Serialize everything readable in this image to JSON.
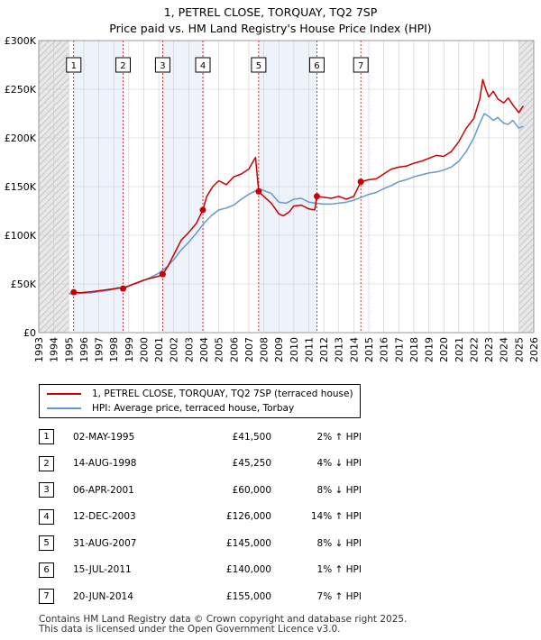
{
  "header": {
    "title_line1": "1, PETREL CLOSE, TORQUAY, TQ2 7SP",
    "title_line2": "Price paid vs. HM Land Registry's House Price Index (HPI)"
  },
  "colors": {
    "property": "#cc0000",
    "hpi": "#6699cc",
    "grid": "#cccccc",
    "shade": "#e8e8e8",
    "highlight": "#eef2fa"
  },
  "chart_data": {
    "type": "line",
    "title": "Price paid vs. HM Land Registry's House Price Index (HPI)",
    "xlim": [
      1993,
      2026
    ],
    "ylim": [
      0,
      300000
    ],
    "yticks": [
      0,
      50000,
      100000,
      150000,
      200000,
      250000,
      300000
    ],
    "ytick_labels": [
      "£0",
      "£50K",
      "£100K",
      "£150K",
      "£200K",
      "£250K",
      "£300K"
    ],
    "xticks": [
      1993,
      1994,
      1995,
      1996,
      1997,
      1998,
      1999,
      2000,
      2001,
      2002,
      2003,
      2004,
      2005,
      2006,
      2007,
      2008,
      2009,
      2010,
      2011,
      2012,
      2013,
      2014,
      2015,
      2016,
      2017,
      2018,
      2019,
      2020,
      2021,
      2022,
      2023,
      2024,
      2025,
      2026
    ],
    "hatched_before": 1995.0,
    "hatched_after": 2025.0,
    "series": [
      {
        "name": "1, PETREL CLOSE, TORQUAY, TQ2 7SP (terraced house)",
        "x": [
          1995.33,
          1995.8,
          1996.5,
          1997.0,
          1997.5,
          1998.0,
          1998.3,
          1998.62,
          1999.0,
          1999.5,
          2000.0,
          2000.5,
          2001.0,
          2001.26,
          2001.6,
          2002.0,
          2002.5,
          2003.0,
          2003.5,
          2003.94,
          2004.2,
          2004.6,
          2005.0,
          2005.5,
          2006.0,
          2006.5,
          2007.0,
          2007.3,
          2007.45,
          2007.66,
          2008.0,
          2008.5,
          2009.0,
          2009.3,
          2009.7,
          2010.0,
          2010.5,
          2011.0,
          2011.4,
          2011.54,
          2012.0,
          2012.5,
          2013.0,
          2013.5,
          2014.0,
          2014.47,
          2015.0,
          2015.5,
          2016.0,
          2016.5,
          2017.0,
          2017.5,
          2018.0,
          2018.5,
          2019.0,
          2019.5,
          2020.0,
          2020.5,
          2021.0,
          2021.5,
          2022.0,
          2022.4,
          2022.6,
          2022.8,
          2023.0,
          2023.3,
          2023.6,
          2024.0,
          2024.3,
          2024.6,
          2025.0,
          2025.3
        ],
        "values": [
          41500,
          41000,
          42000,
          43000,
          44000,
          45000,
          46000,
          45250,
          48000,
          51000,
          54000,
          56000,
          58000,
          60000,
          68000,
          80000,
          95000,
          103000,
          112000,
          126000,
          140000,
          150000,
          156000,
          152000,
          160000,
          163000,
          168000,
          176000,
          180000,
          145000,
          140000,
          133000,
          122000,
          120000,
          124000,
          130000,
          131000,
          127000,
          126000,
          140000,
          139000,
          138000,
          140000,
          137000,
          140000,
          155000,
          157000,
          158000,
          163000,
          168000,
          170000,
          171000,
          174000,
          176000,
          179000,
          182000,
          181000,
          186000,
          196000,
          210000,
          220000,
          240000,
          260000,
          250000,
          242000,
          248000,
          240000,
          236000,
          241000,
          234000,
          226000,
          233000
        ]
      },
      {
        "name": "HPI: Average price, terraced house, Torbay",
        "x": [
          1995.0,
          1995.5,
          1996.0,
          1996.5,
          1997.0,
          1997.5,
          1998.0,
          1998.5,
          1999.0,
          1999.5,
          2000.0,
          2000.5,
          2001.0,
          2001.5,
          2002.0,
          2002.5,
          2003.0,
          2003.5,
          2004.0,
          2004.5,
          2005.0,
          2005.5,
          2006.0,
          2006.5,
          2007.0,
          2007.5,
          2007.7,
          2008.0,
          2008.5,
          2009.0,
          2009.5,
          2010.0,
          2010.5,
          2011.0,
          2011.5,
          2012.0,
          2012.5,
          2013.0,
          2013.5,
          2014.0,
          2014.5,
          2015.0,
          2015.5,
          2016.0,
          2016.5,
          2017.0,
          2017.5,
          2018.0,
          2018.5,
          2019.0,
          2019.5,
          2020.0,
          2020.5,
          2021.0,
          2021.5,
          2022.0,
          2022.4,
          2022.7,
          2023.0,
          2023.3,
          2023.6,
          2024.0,
          2024.3,
          2024.6,
          2025.0,
          2025.3
        ],
        "values": [
          40000,
          40000,
          40500,
          41000,
          42000,
          43000,
          44500,
          46000,
          48000,
          50500,
          53500,
          57000,
          61000,
          67000,
          75000,
          85000,
          93000,
          102000,
          112000,
          120000,
          126000,
          128000,
          131000,
          137000,
          142000,
          146000,
          148000,
          146000,
          143000,
          134000,
          133000,
          137000,
          138000,
          134000,
          133000,
          132000,
          132000,
          133000,
          134000,
          136000,
          139000,
          142000,
          144000,
          148000,
          151000,
          155000,
          157000,
          160000,
          162000,
          164000,
          165000,
          167000,
          170000,
          176000,
          186000,
          200000,
          215000,
          225000,
          222000,
          218000,
          221000,
          215000,
          214000,
          218000,
          210000,
          212000
        ]
      }
    ],
    "sales": [
      {
        "n": "1",
        "year": 1995.33,
        "price": 41500,
        "date": "02-MAY-1995",
        "price_label": "£41,500",
        "hpi": "2% ↑ HPI"
      },
      {
        "n": "2",
        "year": 1998.62,
        "price": 45250,
        "date": "14-AUG-1998",
        "price_label": "£45,250",
        "hpi": "4% ↓ HPI"
      },
      {
        "n": "3",
        "year": 2001.26,
        "price": 60000,
        "date": "06-APR-2001",
        "price_label": "£60,000",
        "hpi": "8% ↓ HPI"
      },
      {
        "n": "4",
        "year": 2003.94,
        "price": 126000,
        "date": "12-DEC-2003",
        "price_label": "£126,000",
        "hpi": "14% ↑ HPI"
      },
      {
        "n": "5",
        "year": 2007.66,
        "price": 145000,
        "date": "31-AUG-2007",
        "price_label": "£145,000",
        "hpi": "8% ↓ HPI"
      },
      {
        "n": "6",
        "year": 2011.54,
        "price": 140000,
        "date": "15-JUL-2011",
        "price_label": "£140,000",
        "hpi": "1% ↑ HPI"
      },
      {
        "n": "7",
        "year": 2014.47,
        "price": 155000,
        "date": "20-JUN-2014",
        "price_label": "£155,000",
        "hpi": "7% ↑ HPI"
      }
    ]
  },
  "legend": {
    "property_label": "1, PETREL CLOSE, TORQUAY, TQ2 7SP (terraced house)",
    "hpi_label": "HPI: Average price, terraced house, Torbay"
  },
  "footer": {
    "line1": "Contains HM Land Registry data © Crown copyright and database right 2025.",
    "line2": "This data is licensed under the Open Government Licence v3.0."
  }
}
